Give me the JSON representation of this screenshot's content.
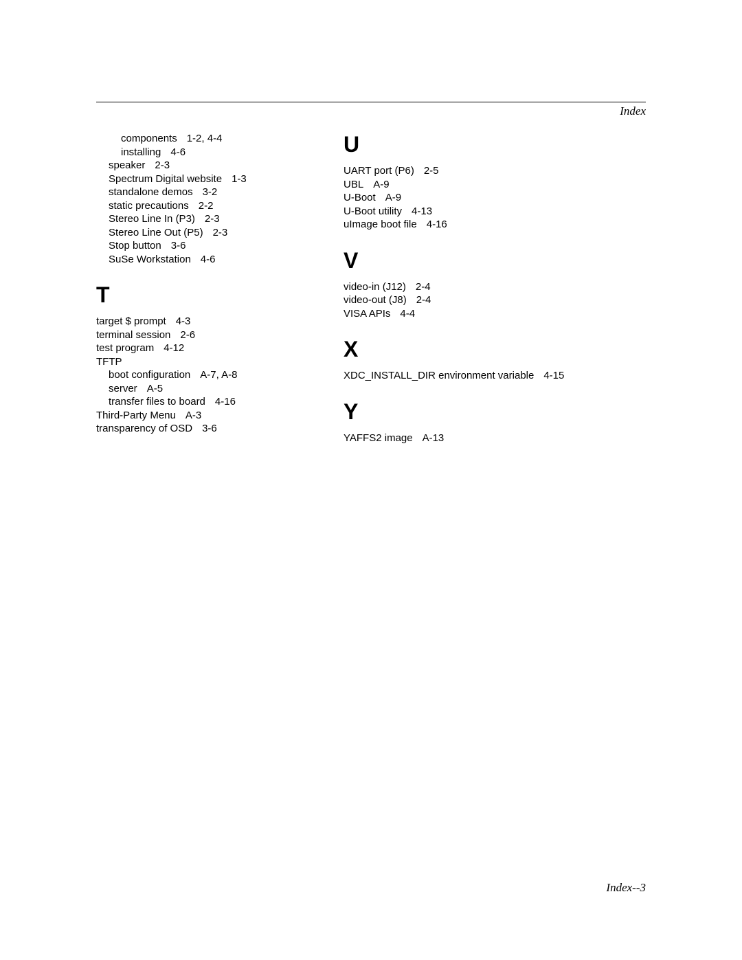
{
  "header": {
    "title": "Index"
  },
  "footer": {
    "pageLabel": "Index--3"
  },
  "leftColumn": {
    "continuationEntries": [
      {
        "term": "components",
        "pages": "1-2, 4-4",
        "indent": 1
      },
      {
        "term": "installing",
        "pages": "4-6",
        "indent": 1
      },
      {
        "term": "speaker",
        "pages": "2-3",
        "indent": 0
      },
      {
        "term": "Spectrum Digital website",
        "pages": "1-3",
        "indent": 0
      },
      {
        "term": "standalone demos",
        "pages": "3-2",
        "indent": 0
      },
      {
        "term": "static precautions",
        "pages": "2-2",
        "indent": 0
      },
      {
        "term": "Stereo Line In (P3)",
        "pages": "2-3",
        "indent": 0
      },
      {
        "term": "Stereo Line Out (P5)",
        "pages": "2-3",
        "indent": 0
      },
      {
        "term": "Stop button",
        "pages": "3-6",
        "indent": 0
      },
      {
        "term": "SuSe Workstation",
        "pages": "4-6",
        "indent": 0
      }
    ],
    "sections": [
      {
        "letter": "T",
        "entries": [
          {
            "term": "target $ prompt",
            "pages": "4-3",
            "indent": 0
          },
          {
            "term": "terminal session",
            "pages": "2-6",
            "indent": 0
          },
          {
            "term": "test program",
            "pages": "4-12",
            "indent": 0
          },
          {
            "term": "TFTP",
            "pages": "",
            "indent": 0
          },
          {
            "term": "boot configuration",
            "pages": "A-7, A-8",
            "indent": 1
          },
          {
            "term": "server",
            "pages": "A-5",
            "indent": 1
          },
          {
            "term": "transfer files to board",
            "pages": "4-16",
            "indent": 1
          },
          {
            "term": "Third-Party Menu",
            "pages": "A-3",
            "indent": 0
          },
          {
            "term": "transparency of OSD",
            "pages": "3-6",
            "indent": 0
          }
        ]
      }
    ]
  },
  "rightColumn": {
    "sections": [
      {
        "letter": "U",
        "entries": [
          {
            "term": "UART port (P6)",
            "pages": "2-5",
            "indent": 0
          },
          {
            "term": "UBL",
            "pages": "A-9",
            "indent": 0
          },
          {
            "term": "U-Boot",
            "pages": "A-9",
            "indent": 0
          },
          {
            "term": "U-Boot utility",
            "pages": "4-13",
            "indent": 0
          },
          {
            "term": "uImage boot file",
            "pages": "4-16",
            "indent": 0
          }
        ]
      },
      {
        "letter": "V",
        "entries": [
          {
            "term": "video-in (J12)",
            "pages": "2-4",
            "indent": 0
          },
          {
            "term": "video-out (J8)",
            "pages": "2-4",
            "indent": 0
          },
          {
            "term": "VISA APIs",
            "pages": "4-4",
            "indent": 0
          }
        ]
      },
      {
        "letter": "X",
        "entries": [
          {
            "term": "XDC_INSTALL_DIR environment variable",
            "pages": "4-15",
            "indent": 0
          }
        ]
      },
      {
        "letter": "Y",
        "entries": [
          {
            "term": "YAFFS2 image",
            "pages": "A-13",
            "indent": 0
          }
        ]
      }
    ]
  }
}
